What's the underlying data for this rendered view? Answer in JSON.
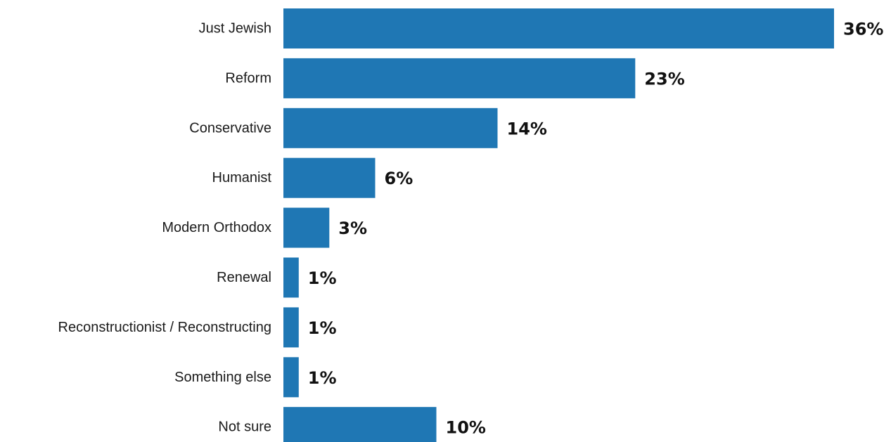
{
  "chart_data": {
    "type": "bar",
    "orientation": "horizontal",
    "categories": [
      "Just Jewish",
      "Reform",
      "Conservative",
      "Humanist",
      "Modern Orthodox",
      "Renewal",
      "Reconstructionist / Reconstructing",
      "Something else",
      "Not sure"
    ],
    "values": [
      36,
      23,
      14,
      6,
      3,
      1,
      1,
      1,
      10
    ],
    "value_labels": [
      "36%",
      "23%",
      "14%",
      "6%",
      "3%",
      "1%",
      "1%",
      "1%",
      "10%"
    ],
    "unit": "%",
    "xlim": [
      0,
      36
    ],
    "grid": false,
    "legend": "none",
    "bar_color": "#1f77b4"
  }
}
